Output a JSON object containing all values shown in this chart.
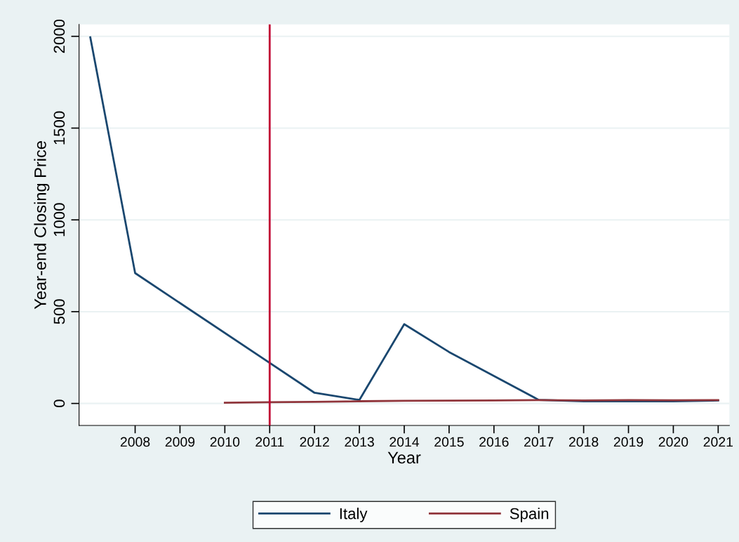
{
  "chart_data": {
    "type": "line",
    "xlabel": "Year",
    "ylabel": "Year-end Closing Price",
    "series": [
      {
        "name": "Italy",
        "color": "#1a476f",
        "x": [
          2007,
          2008,
          2012,
          2013,
          2014,
          2015,
          2017,
          2018,
          2019,
          2020,
          2021
        ],
        "values": [
          1995,
          710,
          58,
          19,
          432,
          280,
          19,
          12,
          12,
          12,
          16
        ]
      },
      {
        "name": "Spain",
        "color": "#90353b",
        "x": [
          2010,
          2011,
          2012,
          2013,
          2014,
          2015,
          2016,
          2017,
          2018,
          2019,
          2020,
          2021
        ],
        "values": [
          4,
          7,
          9,
          12,
          14,
          15,
          16,
          18,
          16,
          18,
          17,
          18
        ]
      }
    ],
    "xlim": [
      2006.75,
      2021.25
    ],
    "xticks": [
      2008,
      2009,
      2010,
      2011,
      2012,
      2013,
      2014,
      2015,
      2016,
      2017,
      2018,
      2019,
      2020,
      2021
    ],
    "ylim": [
      -120,
      2065
    ],
    "yticks": [
      0,
      500,
      1000,
      1500,
      2000
    ],
    "ref_lines": [
      {
        "axis": "x",
        "value": 2011,
        "color": "#c10534"
      }
    ],
    "grid": "y",
    "legend": "bottom",
    "line_style": "solid",
    "marker": "none"
  }
}
